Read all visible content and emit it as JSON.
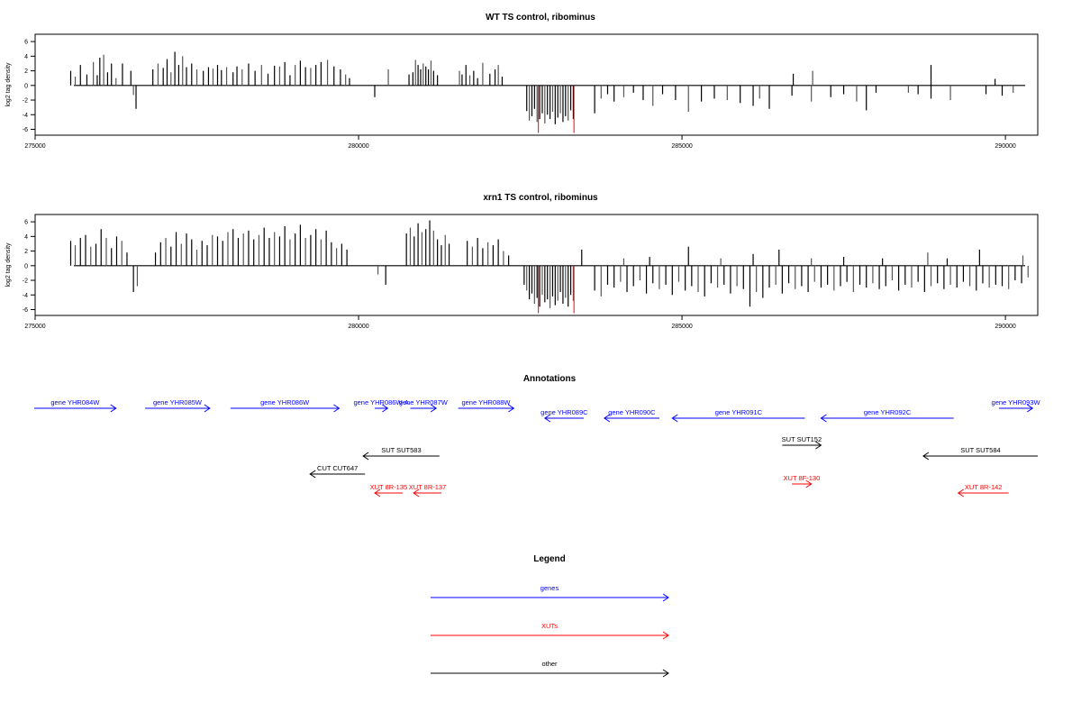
{
  "chart_data": [
    {
      "type": "bar",
      "title": "WT TS control, ribominus",
      "ylabel": "log2 tag density",
      "xlim": [
        275000,
        290500
      ],
      "ylim": [
        -6.8,
        7
      ],
      "yticks": [
        6,
        4,
        2,
        0,
        -2,
        -4,
        -6
      ],
      "xticks": [
        275000,
        280000,
        285000,
        290000
      ],
      "highlight_color": "#ff0000",
      "series": [
        {
          "x": [
            275550,
            275620,
            275700,
            275800,
            275900,
            275960,
            276000,
            276060,
            276120,
            276180,
            276250,
            276350,
            276480,
            276520,
            276560,
            276820,
            276900,
            276980,
            277040,
            277100,
            277160,
            277220,
            277280,
            277340,
            277420,
            277500,
            277600,
            277680,
            277750,
            277820,
            277880,
            277960,
            278060,
            278120,
            278200,
            278300,
            278400,
            278500,
            278600,
            278700,
            278780,
            278860,
            278940,
            279020,
            279100,
            279180,
            279260,
            279340,
            279420,
            279520,
            279620,
            279720,
            279800,
            279860,
            280250,
            280460,
            280780,
            280840,
            280880,
            280920,
            280960,
            281000,
            281040,
            281080,
            281120,
            281160,
            281220,
            281560,
            281600,
            281660,
            281720,
            281780,
            281840,
            281920,
            282030,
            282110,
            282160,
            282220
          ],
          "values": [
            2.0,
            1.2,
            2.8,
            1.5,
            3.2,
            1.4,
            3.8,
            4.2,
            1.8,
            3.0,
            1.0,
            3.0,
            2.0,
            -1.3,
            -3.2,
            2.2,
            3.0,
            2.4,
            3.6,
            1.8,
            4.6,
            2.8,
            4.0,
            2.5,
            3.0,
            2.2,
            2.0,
            2.5,
            2.3,
            2.8,
            2.1,
            2.5,
            1.8,
            2.6,
            2.2,
            3.0,
            2.0,
            2.8,
            1.6,
            2.7,
            2.6,
            3.2,
            1.4,
            2.8,
            3.4,
            2.5,
            2.4,
            2.8,
            3.2,
            3.5,
            2.6,
            2.2,
            1.5,
            1.0,
            -1.6,
            2.2,
            1.5,
            1.8,
            3.5,
            2.8,
            2.2,
            3.0,
            2.6,
            2.2,
            3.4,
            2.0,
            1.4,
            2.0,
            1.5,
            2.8,
            1.4,
            2.0,
            1.0,
            3.1,
            1.6,
            2.2,
            2.8,
            1.2
          ]
        },
        {
          "x": [
            282600,
            282640,
            282680,
            282720,
            282760,
            282800,
            282840,
            282880,
            282920,
            282960,
            283000,
            283040,
            283080,
            283120,
            283160,
            283200,
            283240,
            283280,
            283320
          ],
          "values": [
            -3.5,
            -4.8,
            -4.2,
            -3.2,
            -5.0,
            -4.6,
            -3.8,
            -5.2,
            -4.0,
            -4.6,
            -3.6,
            -5.3,
            -4.4,
            -3.8,
            -5.0,
            -4.2,
            -4.8,
            -3.4,
            -4.6
          ]
        },
        {
          "x": [
            282780,
            283330
          ],
          "values": [
            -6.5,
            -6.5
          ]
        },
        {
          "x": [
            283650,
            283750,
            283850,
            283950,
            284100,
            284250,
            284400,
            284550,
            284700,
            284900,
            285100,
            285300,
            285500,
            285700,
            285900,
            286100,
            286200,
            286350,
            286700,
            287000,
            287300,
            287500,
            287700,
            287850,
            288000,
            288500,
            288650,
            288850,
            289150,
            289700,
            289950,
            290120
          ],
          "values": [
            -3.8,
            -1.8,
            -1.2,
            -2.2,
            -1.6,
            -1.0,
            -2.0,
            -2.8,
            -1.2,
            -2.0,
            -3.6,
            -2.2,
            -1.8,
            -2.0,
            -2.4,
            -2.8,
            -1.8,
            -3.2,
            -1.4,
            -2.2,
            -1.6,
            -1.2,
            -2.2,
            -3.4,
            -1.0,
            -1.0,
            -1.2,
            -1.8,
            -2.0,
            -1.2,
            -1.4,
            -1.0
          ]
        },
        {
          "x": [
            286720,
            287020,
            288850,
            289840
          ],
          "values": [
            1.6,
            2.0,
            2.8,
            0.9
          ]
        }
      ]
    },
    {
      "type": "bar",
      "title": "xrn1 TS control, ribominus",
      "ylabel": "log2 tag density",
      "xlim": [
        275000,
        290500
      ],
      "ylim": [
        -6.8,
        7
      ],
      "yticks": [
        6,
        4,
        2,
        0,
        -2,
        -4,
        -6
      ],
      "xticks": [
        275000,
        280000,
        285000,
        290000
      ],
      "highlight_color": "#ff0000",
      "series": [
        {
          "x": [
            275550,
            275620,
            275700,
            275780,
            275860,
            275940,
            276020,
            276100,
            276180,
            276260,
            276340,
            276420,
            276520,
            276580,
            276860,
            276940,
            277020,
            277100,
            277180,
            277260,
            277340,
            277420,
            277500,
            277580,
            277660,
            277740,
            277820,
            277900,
            277980,
            278060,
            278140,
            278220,
            278300,
            278380,
            278460,
            278540,
            278620,
            278700,
            278780,
            278860,
            278940,
            279020,
            279100,
            279180,
            279260,
            279340,
            279420,
            279500,
            279580,
            279660,
            279740,
            279820,
            280300,
            280420,
            280740,
            280800,
            280860,
            280920,
            280980,
            281040,
            281100,
            281160,
            281220,
            281280,
            281340,
            281400,
            281680,
            281760,
            281840,
            281920,
            282000,
            282080,
            282160,
            282240,
            282320
          ],
          "values": [
            3.4,
            2.8,
            3.8,
            4.2,
            2.6,
            3.0,
            5.0,
            3.8,
            2.4,
            4.0,
            3.4,
            1.8,
            -3.6,
            -2.8,
            1.8,
            3.2,
            3.8,
            2.6,
            4.6,
            3.0,
            4.4,
            3.6,
            2.2,
            3.4,
            2.8,
            4.2,
            4.0,
            3.4,
            4.6,
            5.0,
            3.8,
            4.4,
            4.8,
            3.6,
            4.2,
            5.2,
            3.8,
            4.6,
            4.0,
            5.4,
            3.6,
            4.4,
            5.6,
            3.8,
            4.2,
            5.0,
            3.6,
            4.8,
            3.2,
            2.4,
            3.0,
            2.2,
            -1.2,
            -2.6,
            4.4,
            5.2,
            4.0,
            5.8,
            4.6,
            5.0,
            6.2,
            4.8,
            3.6,
            2.8,
            4.2,
            3.0,
            3.4,
            2.6,
            3.8,
            2.4,
            3.2,
            2.8,
            3.6,
            2.0,
            1.4
          ]
        },
        {
          "x": [
            282560,
            282600,
            282640,
            282680,
            282720,
            282760,
            282800,
            282840,
            282880,
            282920,
            282960,
            283000,
            283040,
            283080,
            283120,
            283160,
            283200,
            283240,
            283280,
            283320
          ],
          "values": [
            -2.6,
            -3.4,
            -4.6,
            -3.8,
            -5.2,
            -4.4,
            -5.6,
            -4.0,
            -5.0,
            -4.6,
            -5.8,
            -4.2,
            -5.4,
            -4.8,
            -3.6,
            -5.2,
            -4.4,
            -5.6,
            -4.0,
            -4.8
          ]
        },
        {
          "x": [
            282780,
            283330
          ],
          "values": [
            -6.5,
            -6.5
          ]
        },
        {
          "x": [
            283650,
            283750,
            283850,
            283950,
            284050,
            284150,
            284250,
            284350,
            284450,
            284550,
            284650,
            284750,
            284850,
            284950,
            285050,
            285150,
            285250,
            285350,
            285450,
            285550,
            285650,
            285750,
            285850,
            285950,
            286050,
            286150,
            286250,
            286350,
            286450,
            286550,
            286650,
            286750,
            286850,
            286950,
            287050,
            287150,
            287250,
            287350,
            287450,
            287550,
            287650,
            287750,
            287850,
            287950,
            288050,
            288150,
            288250,
            288350,
            288450,
            288550,
            288650,
            288750,
            288850,
            288950,
            289050,
            289150,
            289250,
            289350,
            289450,
            289550,
            289650,
            289750,
            289850,
            289950,
            290050,
            290150,
            290250,
            290350
          ],
          "values": [
            -3.4,
            -4.2,
            -2.6,
            -3.0,
            -2.2,
            -3.6,
            -2.8,
            -2.0,
            -3.8,
            -2.4,
            -3.2,
            -2.6,
            -4.0,
            -2.2,
            -3.4,
            -2.8,
            -3.6,
            -4.2,
            -2.4,
            -3.0,
            -2.6,
            -3.8,
            -2.8,
            -3.2,
            -5.6,
            -3.6,
            -4.4,
            -3.0,
            -2.6,
            -3.8,
            -2.4,
            -3.2,
            -2.8,
            -3.6,
            -2.2,
            -3.0,
            -2.6,
            -3.4,
            -2.8,
            -2.2,
            -3.6,
            -2.6,
            -3.0,
            -2.4,
            -3.2,
            -2.8,
            -2.0,
            -3.4,
            -2.6,
            -3.0,
            -2.2,
            -3.6,
            -2.8,
            -2.4,
            -3.2,
            -2.6,
            -3.0,
            -2.2,
            -2.8,
            -3.4,
            -2.4,
            -3.0,
            -2.6,
            -2.8,
            -3.2,
            -2.0,
            -2.4,
            -1.6
          ]
        },
        {
          "x": [
            283450,
            284100,
            284500,
            285100,
            285600,
            286100,
            286500,
            287000,
            287500,
            288100,
            288800,
            289100,
            289600,
            290270
          ],
          "values": [
            2.2,
            1.0,
            1.2,
            2.6,
            1.0,
            1.6,
            2.2,
            1.0,
            1.2,
            1.0,
            1.8,
            1.0,
            2.2,
            1.4
          ]
        }
      ]
    },
    {
      "type": "diagram",
      "title": "Annotations",
      "xlim": [
        275000,
        290500
      ],
      "colors": {
        "gene": "#0000ff",
        "xut": "#ff0000",
        "other": "#000000"
      },
      "features": [
        {
          "label": "gene YHR084W",
          "start": 274900,
          "end": 276250,
          "strand": "+",
          "kind": "gene",
          "row": 0
        },
        {
          "label": "gene YHR085W",
          "start": 276700,
          "end": 277700,
          "strand": "+",
          "kind": "gene",
          "row": 0
        },
        {
          "label": "gene YHR086W",
          "start": 278020,
          "end": 279700,
          "strand": "+",
          "kind": "gene",
          "row": 0
        },
        {
          "label": "gene YHR086W-A",
          "start": 280250,
          "end": 280450,
          "strand": "+",
          "kind": "gene",
          "row": 0
        },
        {
          "label": "gene YHR087W",
          "start": 280800,
          "end": 281200,
          "strand": "+",
          "kind": "gene",
          "row": 0
        },
        {
          "label": "gene YHR088W",
          "start": 281540,
          "end": 282400,
          "strand": "+",
          "kind": "gene",
          "row": 0
        },
        {
          "label": "gene YHR089C",
          "start": 282880,
          "end": 283480,
          "strand": "-",
          "kind": "gene",
          "row": 1
        },
        {
          "label": "gene YHR090C",
          "start": 283800,
          "end": 284650,
          "strand": "-",
          "kind": "gene",
          "row": 1
        },
        {
          "label": "gene YHR091C",
          "start": 284850,
          "end": 286900,
          "strand": "-",
          "kind": "gene",
          "row": 1
        },
        {
          "label": "gene YHR092C",
          "start": 287150,
          "end": 289200,
          "strand": "-",
          "kind": "gene",
          "row": 1
        },
        {
          "label": "gene YHR093W",
          "start": 289900,
          "end": 290420,
          "strand": "+",
          "kind": "gene",
          "row": 0
        },
        {
          "label": "SUT SUT583",
          "start": 280070,
          "end": 281250,
          "strand": "-",
          "kind": "other",
          "row": 3
        },
        {
          "label": "SUT SUT152",
          "start": 286550,
          "end": 287150,
          "strand": "+",
          "kind": "other",
          "row": 2
        },
        {
          "label": "SUT SUT584",
          "start": 288730,
          "end": 290900,
          "strand": "-",
          "kind": "other",
          "row": 3
        },
        {
          "label": "CUT CUT647",
          "start": 279250,
          "end": 280100,
          "strand": "-",
          "kind": "other",
          "row": 4
        },
        {
          "label": "XUT 8R-135",
          "start": 280250,
          "end": 280680,
          "strand": "-",
          "kind": "xut",
          "row": 5
        },
        {
          "label": "XUT 8R-137",
          "start": 280850,
          "end": 281280,
          "strand": "-",
          "kind": "xut",
          "row": 5
        },
        {
          "label": "XUT 8F-130",
          "start": 286700,
          "end": 287000,
          "strand": "+",
          "kind": "xut",
          "row": 6
        },
        {
          "label": "XUT 8R-142",
          "start": 289270,
          "end": 290050,
          "strand": "-",
          "kind": "xut",
          "row": 5
        }
      ]
    },
    {
      "type": "legend",
      "title": "Legend",
      "entries": [
        {
          "label": "genes",
          "color": "#0000ff"
        },
        {
          "label": "XUTs",
          "color": "#ff0000"
        },
        {
          "label": "other",
          "color": "#000000"
        }
      ]
    }
  ]
}
